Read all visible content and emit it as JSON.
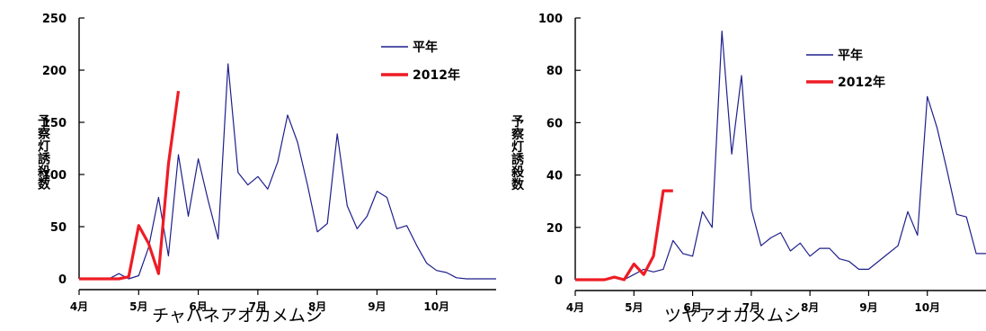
{
  "chart_data": [
    {
      "type": "line",
      "xlabel": "チャバネアオカメムシ",
      "ylabel": "予察灯誘殺数",
      "ylim": [
        0,
        250
      ],
      "yticks": [
        0,
        50,
        100,
        150,
        200,
        250
      ],
      "xlim": [
        0,
        42
      ],
      "xticks": [
        {
          "label": "4月",
          "x": 0
        },
        {
          "label": "5月",
          "x": 6
        },
        {
          "label": "6月",
          "x": 12
        },
        {
          "label": "7月",
          "x": 18
        },
        {
          "label": "8月",
          "x": 24
        },
        {
          "label": "9月",
          "x": 30
        },
        {
          "label": "10月",
          "x": 36
        }
      ],
      "legend_position": "top-right",
      "series": [
        {
          "name": "平年",
          "color": "#1f1f8c",
          "x": [
            0,
            1,
            2,
            3,
            4,
            5,
            6,
            7,
            8,
            9,
            10,
            11,
            12,
            13,
            14,
            15,
            16,
            17,
            18,
            19,
            20,
            21,
            22,
            23,
            24,
            25,
            26,
            27,
            28,
            29,
            30,
            31,
            32,
            33,
            34,
            35,
            36,
            37,
            38,
            39,
            40,
            41,
            42
          ],
          "y": [
            0,
            0,
            0,
            0,
            5,
            0,
            3,
            30,
            78,
            22,
            119,
            60,
            115,
            75,
            38,
            206,
            102,
            90,
            98,
            86,
            112,
            157,
            131,
            90,
            45,
            53,
            139,
            70,
            48,
            60,
            84,
            78,
            48,
            51,
            32,
            15,
            8,
            6,
            1,
            0,
            0,
            0,
            0
          ]
        },
        {
          "name": "2012年",
          "color": "#ee1c25",
          "x": [
            0,
            1,
            2,
            3,
            4,
            5,
            6,
            7,
            8,
            9,
            10
          ],
          "y": [
            0,
            0,
            0,
            0,
            0,
            2,
            51,
            34,
            5,
            110,
            180
          ]
        }
      ]
    },
    {
      "type": "line",
      "xlabel": "ツヤアオカメムシ",
      "ylabel": "予察灯誘殺数",
      "ylim": [
        0,
        100
      ],
      "yticks": [
        0,
        20,
        40,
        60,
        80,
        100
      ],
      "xlim": [
        0,
        42
      ],
      "xticks": [
        {
          "label": "4月",
          "x": 0
        },
        {
          "label": "5月",
          "x": 6
        },
        {
          "label": "6月",
          "x": 12
        },
        {
          "label": "7月",
          "x": 18
        },
        {
          "label": "8月",
          "x": 24
        },
        {
          "label": "9月",
          "x": 30
        },
        {
          "label": "10月",
          "x": 36
        }
      ],
      "legend_position": "top-right",
      "series": [
        {
          "name": "平年",
          "color": "#1f1f8c",
          "x": [
            0,
            1,
            2,
            3,
            4,
            5,
            6,
            7,
            8,
            9,
            10,
            11,
            12,
            13,
            14,
            15,
            16,
            17,
            18,
            19,
            20,
            21,
            22,
            23,
            24,
            25,
            26,
            27,
            28,
            29,
            30,
            31,
            32,
            33,
            34,
            35,
            36,
            37,
            38,
            39,
            40,
            41,
            42
          ],
          "y": [
            0,
            0,
            0,
            0,
            1,
            0,
            2,
            4,
            3,
            4,
            15,
            10,
            9,
            26,
            20,
            95,
            48,
            78,
            27,
            13,
            16,
            18,
            11,
            14,
            9,
            12,
            12,
            8,
            7,
            4,
            4,
            7,
            10,
            13,
            26,
            17,
            70,
            58,
            42,
            25,
            24,
            10,
            10
          ]
        },
        {
          "name": "2012年",
          "color": "#ee1c25",
          "x": [
            0,
            1,
            2,
            3,
            4,
            5,
            6,
            7,
            8,
            9,
            10
          ],
          "y": [
            0,
            0,
            0,
            0,
            1,
            0,
            6,
            2,
            9,
            34,
            34
          ]
        }
      ]
    }
  ]
}
